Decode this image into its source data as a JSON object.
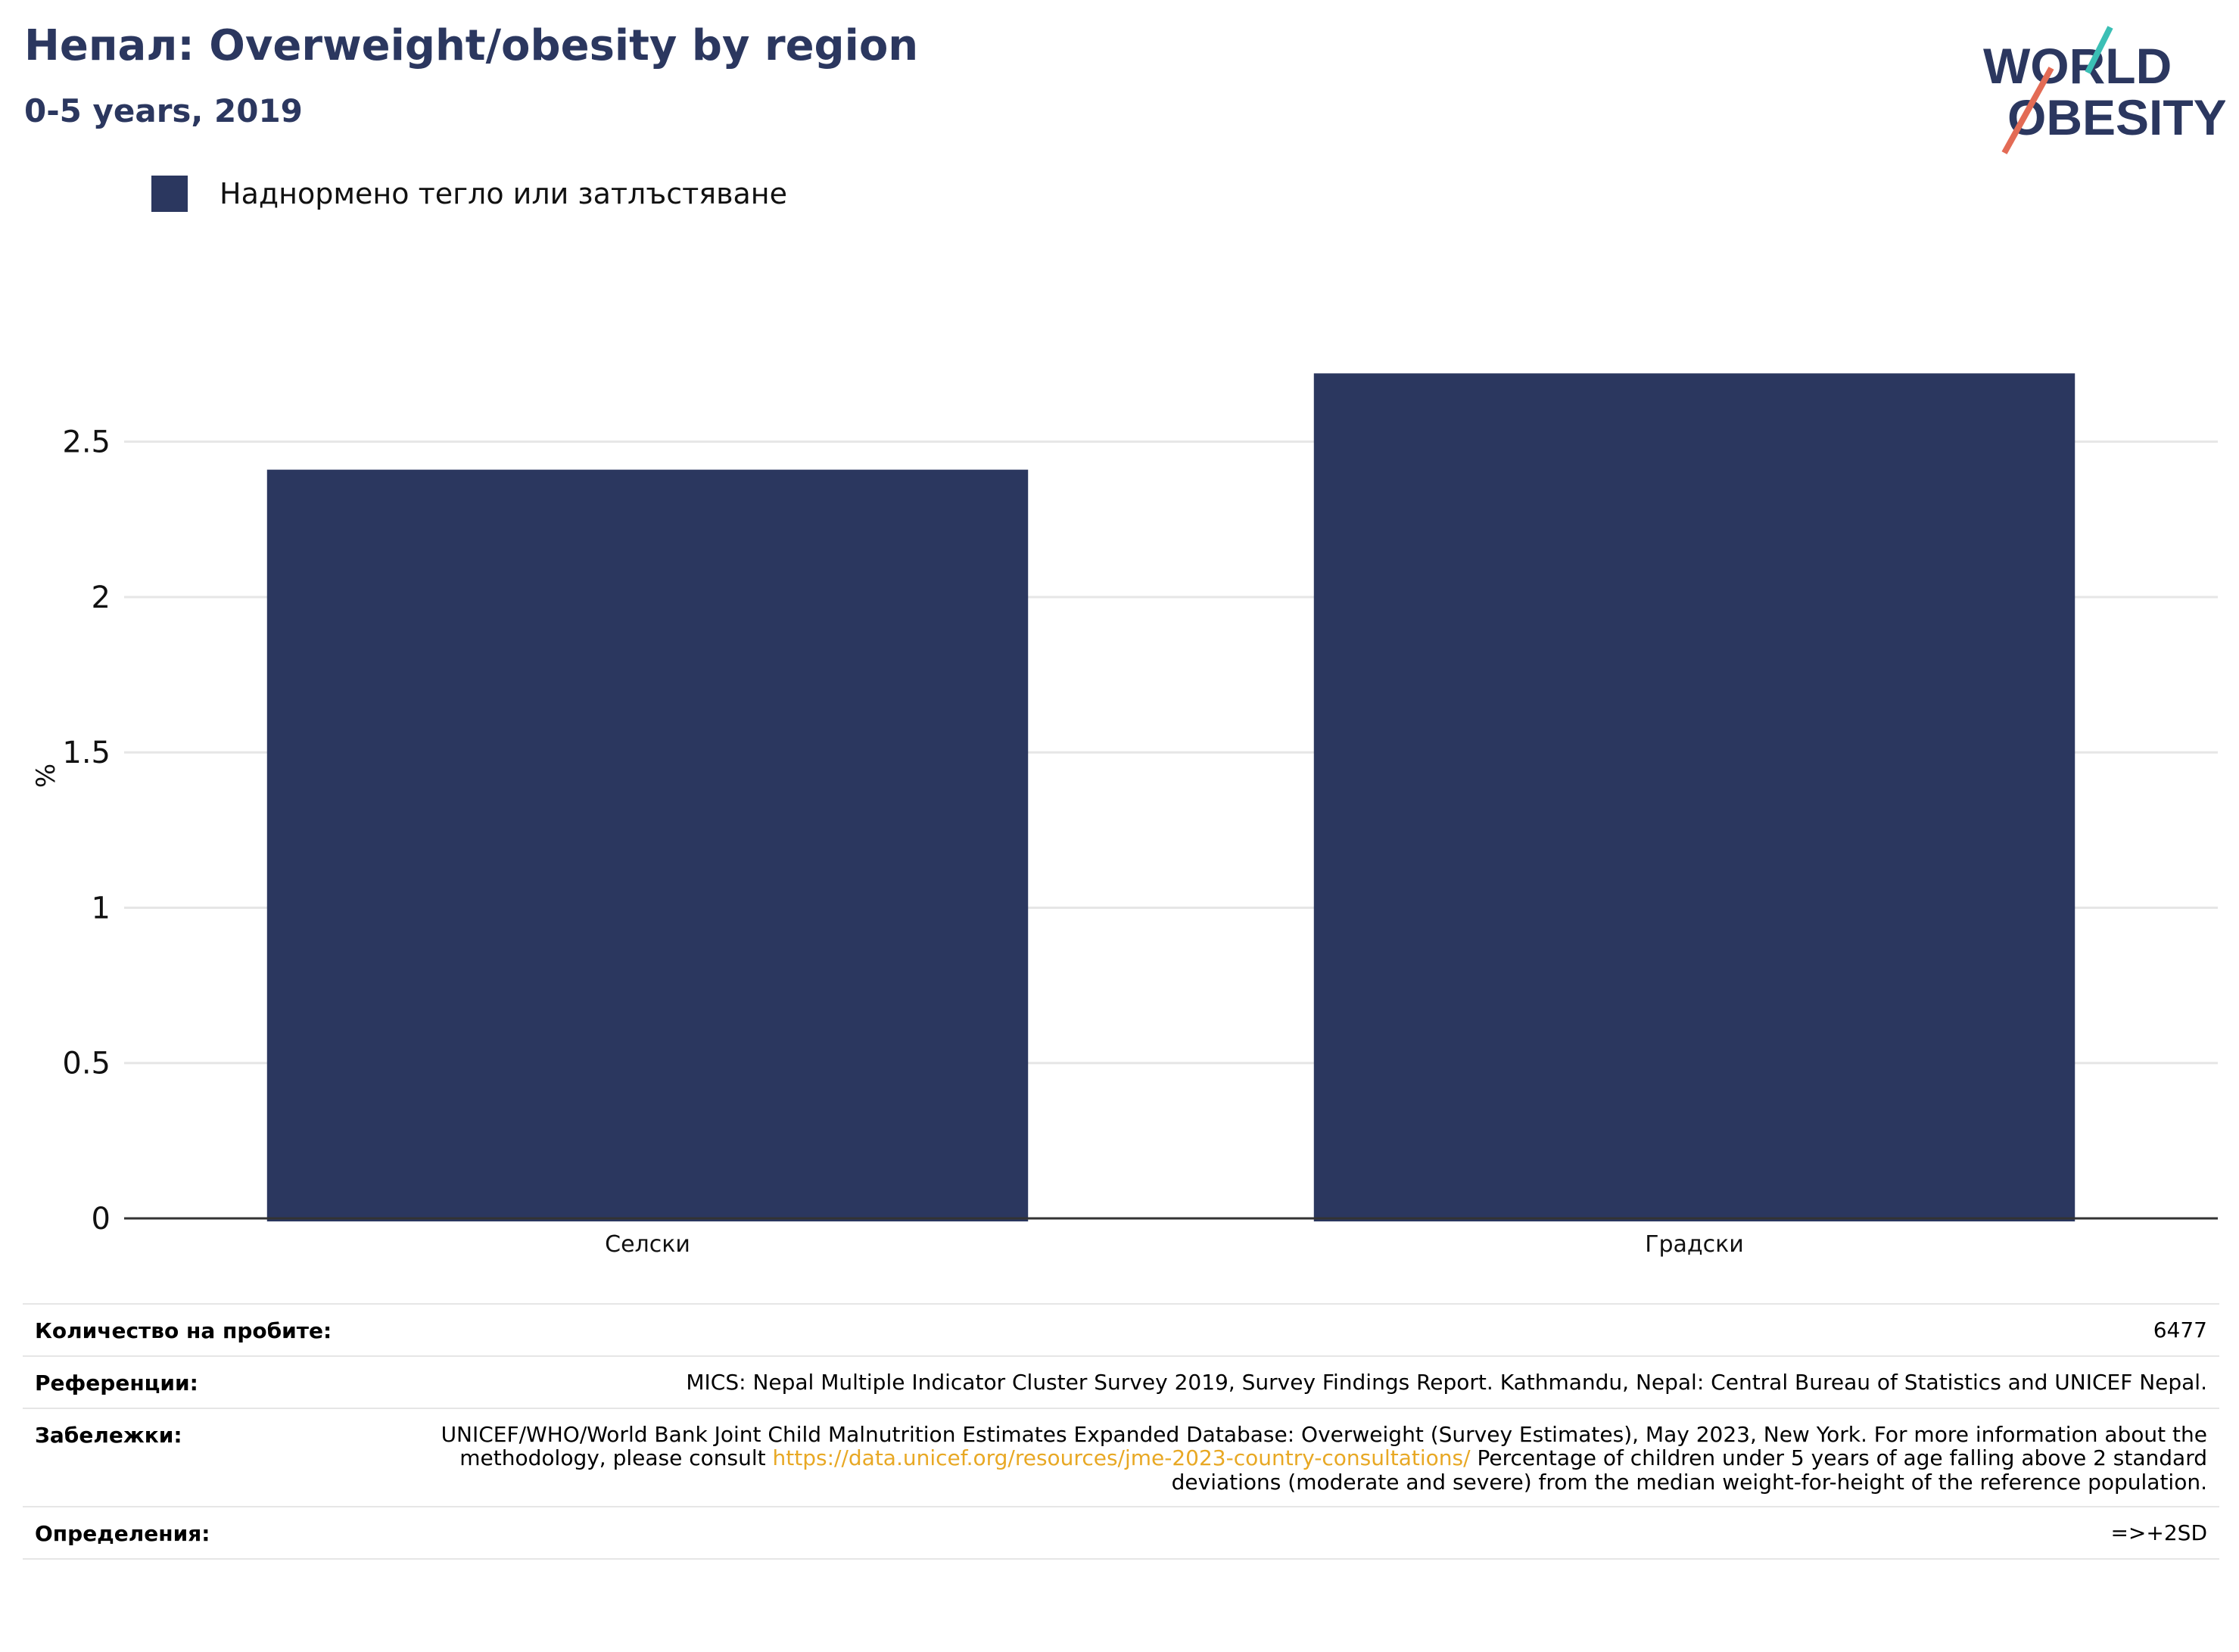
{
  "header": {
    "title": "Непал: Overweight/obesity by region",
    "subtitle": "0-5 years, 2019"
  },
  "logo": {
    "line1": "WORLD",
    "line2": "OBESITY"
  },
  "colors": {
    "bar": "#2b375f",
    "grid": "#e6e6e6",
    "axis": "#333333",
    "link": "#e8a824",
    "logo_teal": "#3bbfb5",
    "logo_coral": "#e36b55"
  },
  "chart_data": {
    "type": "bar",
    "categories": [
      "Селски",
      "Градски"
    ],
    "series": [
      {
        "name": "Наднормено тегло или затлъстяване",
        "values": [
          2.41,
          2.72
        ]
      }
    ],
    "ylabel": "%",
    "xlabel": "",
    "ylim": [
      0,
      2.85
    ],
    "yticks": [
      0,
      0.5,
      1,
      1.5,
      2,
      2.5
    ],
    "grid": true,
    "legend_position": "top-left"
  },
  "footer": {
    "rows": [
      {
        "key": "Количество на пробите:",
        "value": "6477"
      },
      {
        "key": "Референции:",
        "value": "MICS: Nepal Multiple Indicator Cluster Survey 2019, Survey Findings Report. Kathmandu, Nepal: Central Bureau of Statistics and UNICEF Nepal."
      },
      {
        "key": "Забележки:",
        "value_before": "UNICEF/WHO/World Bank Joint Child Malnutrition Estimates Expanded Database: Overweight (Survey Estimates), May 2023, New York. For more information about the methodology, please consult",
        "link": "https://data.unicef.org/resources/jme-2023-country-consultations/",
        "value_after": "Percentage of children under 5 years of age falling above 2 standard deviations (moderate and severe) from the median weight-for-height of the reference population."
      },
      {
        "key": "Определения:",
        "value": "=>+2SD"
      }
    ]
  }
}
